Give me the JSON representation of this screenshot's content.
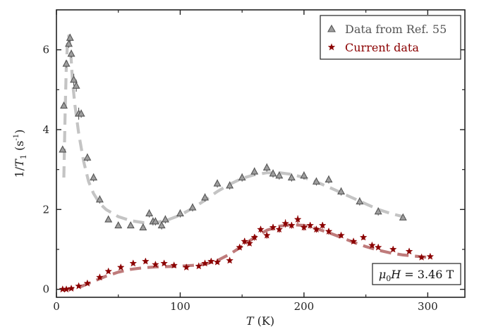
{
  "chart_data": {
    "type": "scatter",
    "xlabel": "T (K)",
    "ylabel": "1/T1 (s-1)",
    "xlim": [
      0,
      330
    ],
    "ylim": [
      -0.2,
      7.0
    ],
    "xticks": [
      0,
      100,
      200,
      300
    ],
    "yticks": [
      0,
      2,
      4,
      6
    ],
    "grid": false,
    "legend_position": "top-right",
    "annotation": "μ0H = 3.46 T",
    "colors": {
      "ref": "#555555",
      "ref_fill": "#9e9e9e",
      "ref_fit": "#c4c4c4",
      "current": "#8b0000",
      "current_fit": "#bf7b7b"
    },
    "series": [
      {
        "name": "Data from Ref. 55",
        "marker": "triangle",
        "x": [
          5,
          6,
          8,
          10,
          11,
          12,
          14,
          16,
          18,
          20,
          25,
          30,
          35,
          42,
          50,
          60,
          70,
          75,
          78,
          80,
          85,
          88,
          100,
          110,
          120,
          130,
          140,
          150,
          160,
          170,
          175,
          180,
          190,
          200,
          210,
          220,
          230,
          245,
          260,
          280
        ],
        "y": [
          3.5,
          4.6,
          5.65,
          6.15,
          6.3,
          5.9,
          5.25,
          5.1,
          4.4,
          4.4,
          3.3,
          2.8,
          2.25,
          1.75,
          1.6,
          1.6,
          1.55,
          1.9,
          1.7,
          1.7,
          1.6,
          1.75,
          1.9,
          2.05,
          2.3,
          2.65,
          2.6,
          2.8,
          2.95,
          3.05,
          2.9,
          2.85,
          2.8,
          2.85,
          2.7,
          2.75,
          2.45,
          2.2,
          1.95,
          1.8
        ],
        "errors": [
          0.05,
          0.05,
          0.1,
          0.1,
          0.1,
          0.1,
          0.15,
          0.15,
          0.15,
          0.1,
          0.1,
          0.1,
          0.1,
          0.05,
          0.05,
          0.05,
          0.05,
          0.1,
          0.1,
          0.1,
          0.1,
          0.1,
          0.1,
          0.1,
          0.1,
          0.1,
          0.1,
          0.1,
          0.1,
          0.1,
          0.1,
          0.1,
          0.1,
          0.1,
          0.1,
          0.1,
          0.1,
          0.1,
          0.1,
          0.05
        ]
      },
      {
        "name": "Current data",
        "marker": "star",
        "x": [
          5,
          8,
          12,
          18,
          25,
          35,
          42,
          52,
          62,
          72,
          80,
          87,
          95,
          105,
          115,
          120,
          125,
          130,
          140,
          148,
          152,
          156,
          160,
          165,
          170,
          175,
          180,
          185,
          190,
          195,
          200,
          205,
          210,
          215,
          220,
          230,
          240,
          248,
          255,
          260,
          272,
          285,
          295,
          302
        ],
        "y": [
          0.0,
          0.0,
          0.02,
          0.08,
          0.15,
          0.3,
          0.45,
          0.55,
          0.65,
          0.7,
          0.62,
          0.65,
          0.6,
          0.55,
          0.58,
          0.65,
          0.7,
          0.68,
          0.72,
          1.05,
          1.2,
          1.15,
          1.3,
          1.5,
          1.35,
          1.55,
          1.5,
          1.65,
          1.6,
          1.75,
          1.55,
          1.6,
          1.5,
          1.6,
          1.45,
          1.35,
          1.2,
          1.3,
          1.1,
          1.05,
          1.0,
          0.95,
          0.8,
          0.82
        ],
        "errors": [
          0.03,
          0.03,
          0.03,
          0.04,
          0.04,
          0.05,
          0.05,
          0.05,
          0.05,
          0.05,
          0.05,
          0.05,
          0.05,
          0.05,
          0.05,
          0.05,
          0.05,
          0.05,
          0.05,
          0.06,
          0.08,
          0.06,
          0.08,
          0.08,
          0.08,
          0.08,
          0.08,
          0.1,
          0.08,
          0.1,
          0.08,
          0.08,
          0.08,
          0.08,
          0.08,
          0.06,
          0.06,
          0.06,
          0.06,
          0.05,
          0.05,
          0.05,
          0.05,
          0.05
        ]
      }
    ],
    "fits": [
      {
        "for": "Data from Ref. 55",
        "style": "dashed",
        "x": [
          6,
          7,
          8,
          9,
          10,
          11,
          12,
          13,
          15,
          18,
          22,
          26,
          30,
          35,
          40,
          50,
          60,
          70,
          80,
          90,
          100,
          110,
          120,
          130,
          140,
          150,
          160,
          170,
          180,
          190,
          200,
          210,
          220,
          230,
          240,
          250,
          260,
          270,
          280
        ],
        "y": [
          2.8,
          4.4,
          5.6,
          6.2,
          6.35,
          6.1,
          5.7,
          5.2,
          4.6,
          3.9,
          3.2,
          2.7,
          2.4,
          2.15,
          2.0,
          1.82,
          1.72,
          1.67,
          1.67,
          1.74,
          1.86,
          2.03,
          2.23,
          2.45,
          2.63,
          2.78,
          2.87,
          2.92,
          2.92,
          2.88,
          2.8,
          2.69,
          2.56,
          2.42,
          2.28,
          2.14,
          2.0,
          1.9,
          1.82
        ]
      },
      {
        "for": "Current data",
        "style": "dashed",
        "x": [
          5,
          10,
          15,
          20,
          30,
          40,
          50,
          60,
          70,
          80,
          90,
          100,
          110,
          120,
          130,
          140,
          150,
          160,
          170,
          180,
          190,
          200,
          210,
          220,
          230,
          240,
          250,
          260,
          270,
          280,
          290,
          300
        ],
        "y": [
          0.0,
          0.01,
          0.03,
          0.07,
          0.2,
          0.33,
          0.43,
          0.5,
          0.54,
          0.56,
          0.57,
          0.58,
          0.6,
          0.63,
          0.72,
          0.88,
          1.08,
          1.3,
          1.48,
          1.58,
          1.62,
          1.6,
          1.52,
          1.42,
          1.3,
          1.18,
          1.07,
          0.98,
          0.91,
          0.86,
          0.83,
          0.8
        ]
      }
    ]
  }
}
